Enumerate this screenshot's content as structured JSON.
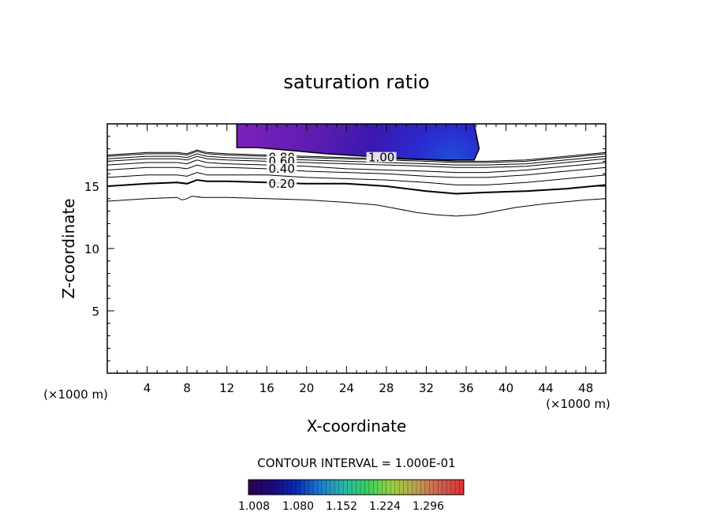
{
  "chart_data": {
    "type": "contour",
    "title": "saturation ratio",
    "xlabel": "X-coordinate",
    "ylabel": "Z-coordinate",
    "x_unit_left": "(×1000 m)",
    "x_unit_right": "(×1000 m)",
    "xlim": [
      0,
      50
    ],
    "ylim": [
      0,
      20
    ],
    "x_ticks": [
      4,
      8,
      12,
      16,
      20,
      24,
      28,
      32,
      36,
      40,
      44,
      48
    ],
    "y_ticks": [
      5,
      10,
      15
    ],
    "contour_interval_text": "CONTOUR INTERVAL = 1.000E-01",
    "contour_labels": [
      {
        "text": "0.80",
        "x": 17.5,
        "z": 17.3
      },
      {
        "text": "0.60",
        "x": 17.5,
        "z": 17.0
      },
      {
        "text": "0.40",
        "x": 17.5,
        "z": 16.4
      },
      {
        "text": "0.20",
        "x": 17.5,
        "z": 15.2
      },
      {
        "text": "1.00",
        "x": 27.5,
        "z": 17.3
      }
    ],
    "contour_lines": [
      {
        "level": 0.1,
        "bold": false,
        "points": [
          [
            0,
            13.8
          ],
          [
            4,
            14.0
          ],
          [
            7,
            14.1
          ],
          [
            7.5,
            13.9
          ],
          [
            8,
            14.0
          ],
          [
            8.5,
            14.2
          ],
          [
            9.5,
            14.1
          ],
          [
            12,
            14.1
          ],
          [
            16,
            14.0
          ],
          [
            20,
            13.9
          ],
          [
            24,
            13.7
          ],
          [
            27,
            13.5
          ],
          [
            29,
            13.2
          ],
          [
            31,
            12.9
          ],
          [
            33,
            12.7
          ],
          [
            35,
            12.6
          ],
          [
            37,
            12.7
          ],
          [
            39,
            13.0
          ],
          [
            41,
            13.3
          ],
          [
            44,
            13.6
          ],
          [
            48,
            13.9
          ],
          [
            50,
            14.0
          ]
        ]
      },
      {
        "level": 0.2,
        "bold": true,
        "points": [
          [
            0,
            15.0
          ],
          [
            4,
            15.2
          ],
          [
            7,
            15.3
          ],
          [
            8,
            15.2
          ],
          [
            9,
            15.5
          ],
          [
            10,
            15.4
          ],
          [
            12,
            15.4
          ],
          [
            16,
            15.3
          ],
          [
            20,
            15.2
          ],
          [
            24,
            15.2
          ],
          [
            28,
            15.0
          ],
          [
            32,
            14.6
          ],
          [
            35,
            14.4
          ],
          [
            38,
            14.5
          ],
          [
            42,
            14.6
          ],
          [
            46,
            14.8
          ],
          [
            50,
            15.1
          ]
        ]
      },
      {
        "level": 0.3,
        "bold": false,
        "points": [
          [
            0,
            15.7
          ],
          [
            4,
            15.9
          ],
          [
            7,
            15.9
          ],
          [
            8,
            15.8
          ],
          [
            9,
            16.1
          ],
          [
            10,
            15.9
          ],
          [
            12,
            15.9
          ],
          [
            16,
            15.9
          ],
          [
            20,
            15.7
          ],
          [
            24,
            15.6
          ],
          [
            28,
            15.5
          ],
          [
            32,
            15.3
          ],
          [
            35,
            15.1
          ],
          [
            38,
            15.1
          ],
          [
            42,
            15.3
          ],
          [
            46,
            15.6
          ],
          [
            50,
            15.9
          ]
        ]
      },
      {
        "level": 0.4,
        "bold": false,
        "points": [
          [
            0,
            16.3
          ],
          [
            4,
            16.5
          ],
          [
            7,
            16.5
          ],
          [
            8,
            16.4
          ],
          [
            9,
            16.7
          ],
          [
            10,
            16.5
          ],
          [
            12,
            16.5
          ],
          [
            16,
            16.4
          ],
          [
            20,
            16.2
          ],
          [
            24,
            16.1
          ],
          [
            28,
            16.0
          ],
          [
            32,
            15.8
          ],
          [
            35,
            15.7
          ],
          [
            38,
            15.7
          ],
          [
            42,
            15.9
          ],
          [
            46,
            16.2
          ],
          [
            50,
            16.5
          ]
        ]
      },
      {
        "level": 0.5,
        "bold": false,
        "points": [
          [
            0,
            16.7
          ],
          [
            4,
            16.9
          ],
          [
            7,
            16.9
          ],
          [
            8,
            16.8
          ],
          [
            9,
            17.1
          ],
          [
            10,
            16.9
          ],
          [
            12,
            16.8
          ],
          [
            16,
            16.7
          ],
          [
            20,
            16.6
          ],
          [
            24,
            16.4
          ],
          [
            28,
            16.3
          ],
          [
            32,
            16.2
          ],
          [
            35,
            16.1
          ],
          [
            38,
            16.1
          ],
          [
            42,
            16.3
          ],
          [
            46,
            16.6
          ],
          [
            50,
            16.9
          ]
        ]
      },
      {
        "level": 0.6,
        "bold": false,
        "points": [
          [
            0,
            17.0
          ],
          [
            4,
            17.2
          ],
          [
            7,
            17.2
          ],
          [
            8,
            17.1
          ],
          [
            9,
            17.4
          ],
          [
            10,
            17.2
          ],
          [
            12,
            17.1
          ],
          [
            16,
            17.0
          ],
          [
            20,
            16.9
          ],
          [
            24,
            16.8
          ],
          [
            28,
            16.7
          ],
          [
            32,
            16.6
          ],
          [
            35,
            16.5
          ],
          [
            38,
            16.5
          ],
          [
            42,
            16.6
          ],
          [
            46,
            16.9
          ],
          [
            50,
            17.2
          ]
        ]
      },
      {
        "level": 0.7,
        "bold": false,
        "points": [
          [
            0,
            17.2
          ],
          [
            4,
            17.4
          ],
          [
            7,
            17.4
          ],
          [
            8,
            17.3
          ],
          [
            9,
            17.6
          ],
          [
            10,
            17.4
          ],
          [
            12,
            17.3
          ],
          [
            16,
            17.2
          ],
          [
            20,
            17.1
          ],
          [
            24,
            17.0
          ],
          [
            28,
            16.9
          ],
          [
            32,
            16.8
          ],
          [
            35,
            16.7
          ],
          [
            38,
            16.7
          ],
          [
            42,
            16.8
          ],
          [
            46,
            17.1
          ],
          [
            50,
            17.4
          ]
        ]
      },
      {
        "level": 0.8,
        "bold": false,
        "points": [
          [
            0,
            17.4
          ],
          [
            4,
            17.6
          ],
          [
            7,
            17.6
          ],
          [
            8,
            17.5
          ],
          [
            9,
            17.8
          ],
          [
            10,
            17.6
          ],
          [
            12,
            17.5
          ],
          [
            16,
            17.4
          ],
          [
            20,
            17.3
          ],
          [
            24,
            17.2
          ],
          [
            28,
            17.1
          ],
          [
            32,
            17.0
          ],
          [
            35,
            16.9
          ],
          [
            38,
            16.9
          ],
          [
            42,
            17.0
          ],
          [
            46,
            17.3
          ],
          [
            50,
            17.6
          ]
        ]
      },
      {
        "level": 0.9,
        "bold": false,
        "points": [
          [
            0,
            17.5
          ],
          [
            4,
            17.7
          ],
          [
            7,
            17.7
          ],
          [
            8,
            17.6
          ],
          [
            9,
            17.9
          ],
          [
            10,
            17.7
          ],
          [
            12,
            17.6
          ],
          [
            16,
            17.5
          ],
          [
            20,
            17.4
          ],
          [
            24,
            17.3
          ],
          [
            28,
            17.2
          ],
          [
            32,
            17.1
          ],
          [
            35,
            17.0
          ],
          [
            38,
            17.0
          ],
          [
            42,
            17.1
          ],
          [
            46,
            17.4
          ],
          [
            50,
            17.7
          ]
        ]
      }
    ],
    "filled_region": {
      "level_min": 1.0,
      "outline": [
        [
          13,
          20
        ],
        [
          36.8,
          20
        ],
        [
          37.3,
          18.0
        ],
        [
          36.8,
          17.1
        ],
        [
          34,
          17.1
        ],
        [
          30,
          17.2
        ],
        [
          26,
          17.4
        ],
        [
          22,
          17.6
        ],
        [
          18,
          17.9
        ],
        [
          15,
          18.1
        ],
        [
          13,
          18.1
        ]
      ]
    },
    "colorbar": {
      "tick_labels": [
        "1.008",
        "1.080",
        "1.152",
        "1.224",
        "1.296"
      ],
      "colors": [
        "#300050",
        "#1a0a80",
        "#0a2ab0",
        "#1e7ad0",
        "#2ab8a8",
        "#3ad060",
        "#9ad040",
        "#c0a050",
        "#d06050",
        "#e03030"
      ]
    },
    "fill_colors": [
      "#8a20c0",
      "#7020b8",
      "#5a1cb0",
      "#3a18b0",
      "#2a2ad0",
      "#2050d8"
    ]
  }
}
